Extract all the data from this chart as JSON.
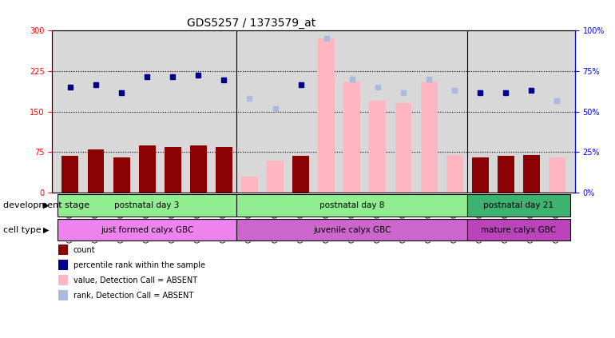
{
  "title": "GDS5257 / 1373579_at",
  "samples": [
    "GSM1202424",
    "GSM1202425",
    "GSM1202426",
    "GSM1202427",
    "GSM1202428",
    "GSM1202429",
    "GSM1202430",
    "GSM1202431",
    "GSM1202432",
    "GSM1202433",
    "GSM1202434",
    "GSM1202435",
    "GSM1202436",
    "GSM1202437",
    "GSM1202438",
    "GSM1202439",
    "GSM1202440",
    "GSM1202441",
    "GSM1202442",
    "GSM1202443"
  ],
  "count_values": [
    68,
    80,
    65,
    88,
    85,
    88,
    85,
    null,
    null,
    68,
    null,
    null,
    null,
    null,
    null,
    null,
    65,
    68,
    70,
    null
  ],
  "count_absent_values": [
    null,
    null,
    null,
    null,
    null,
    null,
    null,
    30,
    60,
    null,
    285,
    205,
    170,
    165,
    205,
    70,
    null,
    null,
    null,
    65
  ],
  "rank_values": [
    195,
    200,
    185,
    215,
    215,
    218,
    208,
    null,
    null,
    200,
    null,
    null,
    null,
    null,
    null,
    null,
    185,
    185,
    190,
    null
  ],
  "rank_absent_values": [
    null,
    null,
    null,
    null,
    null,
    null,
    null,
    175,
    155,
    null,
    285,
    210,
    195,
    185,
    210,
    190,
    null,
    null,
    null,
    170
  ],
  "ylim_left": [
    0,
    300
  ],
  "yticks_left": [
    0,
    75,
    150,
    225,
    300
  ],
  "yticks_right": [
    0,
    25,
    50,
    75,
    100
  ],
  "bar_color_present": "#8B0000",
  "bar_color_absent": "#FFB6C1",
  "dot_color_present": "#00008B",
  "dot_color_absent": "#AABBDD",
  "background_color": "#D8D8D8",
  "group_configs": [
    {
      "start": 0,
      "end": 7,
      "label": "postnatal day 3",
      "color": "#90EE90"
    },
    {
      "start": 7,
      "end": 16,
      "label": "postnatal day 8",
      "color": "#90EE90"
    },
    {
      "start": 16,
      "end": 20,
      "label": "postnatal day 21",
      "color": "#3CB371"
    }
  ],
  "cell_configs": [
    {
      "start": 0,
      "end": 7,
      "label": "just formed calyx GBC",
      "color": "#EE82EE"
    },
    {
      "start": 7,
      "end": 16,
      "label": "juvenile calyx GBC",
      "color": "#CC66CC"
    },
    {
      "start": 16,
      "end": 20,
      "label": "mature calyx GBC",
      "color": "#BB44BB"
    }
  ],
  "legend_items": [
    {
      "label": "count",
      "color": "#8B0000"
    },
    {
      "label": "percentile rank within the sample",
      "color": "#00008B"
    },
    {
      "label": "value, Detection Call = ABSENT",
      "color": "#FFB6C1"
    },
    {
      "label": "rank, Detection Call = ABSENT",
      "color": "#AABBDD"
    }
  ],
  "dev_stage_label": "development stage",
  "cell_type_label": "cell type",
  "title_fontsize": 10,
  "tick_fontsize": 7,
  "label_fontsize": 8,
  "bar_width": 0.65
}
